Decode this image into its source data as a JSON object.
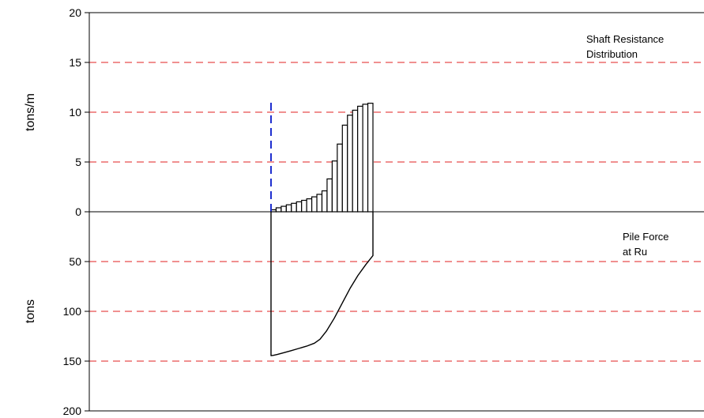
{
  "chart_data": {
    "type": "bar",
    "panels": [
      {
        "name": "shaft-resistance",
        "ylabel": "tons/m",
        "ylim": [
          0,
          20
        ],
        "yticks": [
          "0",
          "5",
          "10",
          "15",
          "20"
        ],
        "grid": "dashed red horizontal",
        "annotation": [
          "Shaft Resistance",
          "Distribution"
        ],
        "series": [
          {
            "type": "bar",
            "values": [
              0.2,
              0.4,
              0.55,
              0.7,
              0.85,
              1.0,
              1.15,
              1.3,
              1.5,
              1.75,
              2.1,
              3.3,
              5.1,
              6.8,
              8.7,
              9.7,
              10.2,
              10.6,
              10.8,
              10.9
            ]
          }
        ],
        "reference_line": {
          "value": 11,
          "style": "dashed",
          "color": "#1f2fcf"
        }
      },
      {
        "name": "pile-force",
        "ylabel": "tons",
        "ylim": [
          0,
          200
        ],
        "yticks": [
          "0",
          "50",
          "100",
          "150",
          "200"
        ],
        "inverted": true,
        "grid": "dashed red horizontal",
        "annotation": [
          "Pile Force",
          "at Ru"
        ],
        "series": [
          {
            "type": "line",
            "points": [
              [
                0,
                144.5
              ],
              [
                3,
                144.2
              ],
              [
                8,
                143.3
              ],
              [
                15,
                141.8
              ],
              [
                25,
                139.6
              ],
              [
                35,
                137.3
              ],
              [
                45,
                135.0
              ],
              [
                55,
                132.0
              ],
              [
                62,
                128.0
              ],
              [
                70,
                120.0
              ],
              [
                80,
                107.0
              ],
              [
                90,
                92.0
              ],
              [
                100,
                77.0
              ],
              [
                110,
                64.0
              ],
              [
                120,
                53.0
              ],
              [
                129,
                44.0
              ],
              [
                129,
                0
              ]
            ]
          }
        ]
      }
    ],
    "colors": {
      "grid": "#e02020",
      "reference": "#1f2fcf",
      "ink": "#000000"
    }
  }
}
